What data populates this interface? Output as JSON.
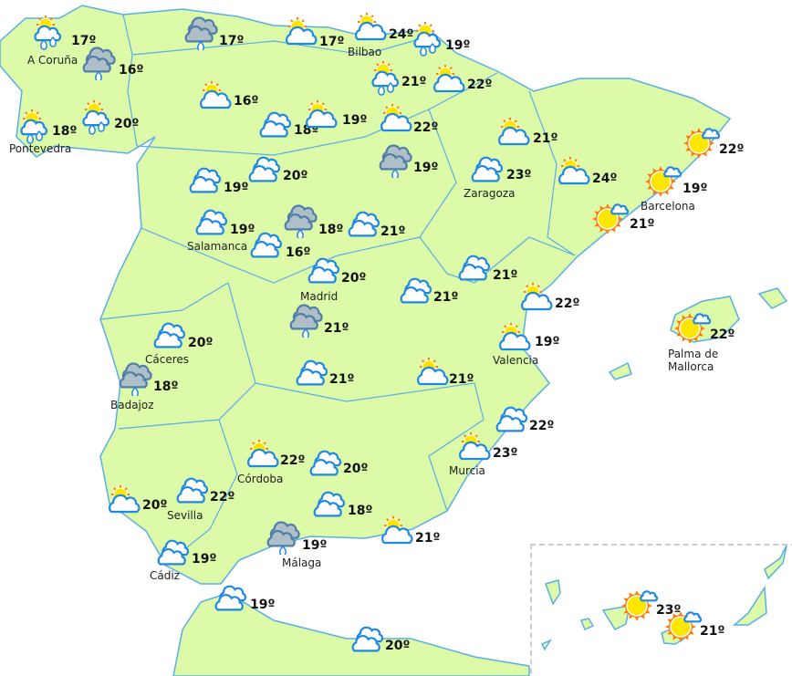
{
  "colors": {
    "land": "#dcfaa8",
    "border": "#5aaee8",
    "cloud_outline": "#1e88e5",
    "storm_cloud": "#aebfc8",
    "sun": "#ffe600",
    "sun_rays": "#ff7a00"
  },
  "icon_types": {
    "sun-cloud-rain": "partly cloudy with rain",
    "storm-cloud-rain": "overcast with rain",
    "sun-cloud": "partly cloudy",
    "cloudy": "cloudy",
    "sun-small-cloud": "mostly sunny"
  },
  "locations": [
    {
      "name": "A Coruña",
      "temp": "17º",
      "icon": "sun-cloud-rain"
    },
    {
      "name": "",
      "temp": "16º",
      "icon": "storm-cloud-rain"
    },
    {
      "name": "Pontevedra",
      "temp": "18º",
      "icon": "sun-cloud-rain"
    },
    {
      "name": "",
      "temp": "20º",
      "icon": "sun-cloud-rain"
    },
    {
      "name": "",
      "temp": "17º",
      "icon": "storm-cloud-rain"
    },
    {
      "name": "",
      "temp": "16º",
      "icon": "sun-cloud"
    },
    {
      "name": "",
      "temp": "17º",
      "icon": "sun-cloud"
    },
    {
      "name": "Bilbao",
      "temp": "24º",
      "icon": "sun-cloud"
    },
    {
      "name": "",
      "temp": "19º",
      "icon": "sun-cloud-rain"
    },
    {
      "name": "",
      "temp": "21º",
      "icon": "sun-cloud-rain"
    },
    {
      "name": "",
      "temp": "22º",
      "icon": "sun-cloud"
    },
    {
      "name": "",
      "temp": "18º",
      "icon": "cloudy"
    },
    {
      "name": "",
      "temp": "19º",
      "icon": "sun-cloud"
    },
    {
      "name": "",
      "temp": "22º",
      "icon": "sun-cloud"
    },
    {
      "name": "",
      "temp": "19º",
      "icon": "storm-cloud-rain"
    },
    {
      "name": "",
      "temp": "19º",
      "icon": "cloudy"
    },
    {
      "name": "",
      "temp": "20º",
      "icon": "cloudy"
    },
    {
      "name": "",
      "temp": "21º",
      "icon": "sun-cloud"
    },
    {
      "name": "Zaragoza",
      "temp": "23º",
      "icon": "cloudy"
    },
    {
      "name": "",
      "temp": "24º",
      "icon": "sun-cloud"
    },
    {
      "name": "",
      "temp": "22º",
      "icon": "sun-small-cloud"
    },
    {
      "name": "Barcelona",
      "temp": "19º",
      "icon": "sun-small-cloud"
    },
    {
      "name": "",
      "temp": "21º",
      "icon": "sun-small-cloud"
    },
    {
      "name": "Salamanca",
      "temp": "19º",
      "icon": "cloudy"
    },
    {
      "name": "",
      "temp": "18º",
      "icon": "storm-cloud-rain"
    },
    {
      "name": "",
      "temp": "16º",
      "icon": "cloudy"
    },
    {
      "name": "",
      "temp": "21º",
      "icon": "cloudy"
    },
    {
      "name": "Madrid",
      "temp": "20º",
      "icon": "cloudy"
    },
    {
      "name": "",
      "temp": "21º",
      "icon": "cloudy"
    },
    {
      "name": "",
      "temp": "21º",
      "icon": "cloudy"
    },
    {
      "name": "",
      "temp": "22º",
      "icon": "sun-cloud"
    },
    {
      "name": "Palma de Mallorca",
      "temp": "22º",
      "icon": "sun-small-cloud"
    },
    {
      "name": "",
      "temp": "21º",
      "icon": "storm-cloud-rain"
    },
    {
      "name": "Cáceres",
      "temp": "20º",
      "icon": "cloudy"
    },
    {
      "name": "Badajoz",
      "temp": "18º",
      "icon": "storm-cloud-rain"
    },
    {
      "name": "",
      "temp": "21º",
      "icon": "cloudy"
    },
    {
      "name": "",
      "temp": "21º",
      "icon": "sun-cloud"
    },
    {
      "name": "Valencia",
      "temp": "19º",
      "icon": "sun-cloud"
    },
    {
      "name": "",
      "temp": "22º",
      "icon": "cloudy"
    },
    {
      "name": "Murcia",
      "temp": "23º",
      "icon": "sun-cloud"
    },
    {
      "name": "Córdoba",
      "temp": "22º",
      "icon": "sun-cloud"
    },
    {
      "name": "",
      "temp": "20º",
      "icon": "cloudy"
    },
    {
      "name": "Sevilla",
      "temp": "22º",
      "icon": "cloudy"
    },
    {
      "name": "",
      "temp": "20º",
      "icon": "sun-cloud"
    },
    {
      "name": "",
      "temp": "18º",
      "icon": "cloudy"
    },
    {
      "name": "Málaga",
      "temp": "19º",
      "icon": "storm-cloud-rain"
    },
    {
      "name": "",
      "temp": "21º",
      "icon": "sun-cloud"
    },
    {
      "name": "Cádiz",
      "temp": "19º",
      "icon": "cloudy"
    },
    {
      "name": "",
      "temp": "19º",
      "icon": "cloudy"
    },
    {
      "name": "",
      "temp": "20º",
      "icon": "cloudy"
    },
    {
      "name": "",
      "temp": "23º",
      "icon": "sun-small-cloud"
    },
    {
      "name": "",
      "temp": "21º",
      "icon": "sun-small-cloud"
    }
  ]
}
